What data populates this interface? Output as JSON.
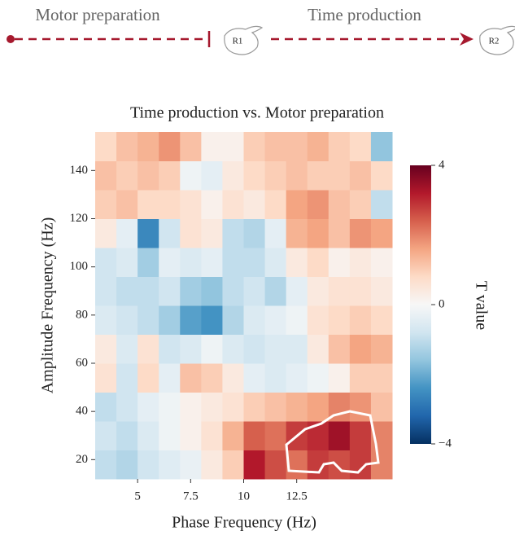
{
  "diagram": {
    "labels": [
      "Motor preparation",
      "Time production"
    ],
    "responses": [
      "R1",
      "R2"
    ]
  },
  "chart_data": {
    "type": "heatmap",
    "title": "Time production vs. Motor preparation",
    "x_label": "Phase Frequency (Hz)",
    "y_label": "Amplitude Frequency (Hz)",
    "colorbar_label": "T value",
    "xbins": [
      3,
      4,
      5,
      6,
      7,
      8,
      9,
      10,
      11,
      12,
      13,
      14,
      15,
      16,
      17
    ],
    "ybins": [
      12,
      24,
      36,
      48,
      60,
      72,
      84,
      96,
      108,
      120,
      132,
      144,
      156
    ],
    "z": [
      [
        -1.0,
        -1.2,
        -0.8,
        -0.5,
        -0.3,
        0.4,
        1.0,
        3.2,
        2.6,
        2.2,
        2.8,
        2.6,
        2.8,
        2.0
      ],
      [
        -0.8,
        -1.0,
        -0.6,
        -0.2,
        0.2,
        0.6,
        1.4,
        2.4,
        2.2,
        2.8,
        3.0,
        3.4,
        2.8,
        2.0
      ],
      [
        -1.0,
        -0.8,
        -0.4,
        -0.2,
        0.2,
        0.4,
        0.6,
        1.0,
        1.2,
        1.4,
        1.6,
        2.0,
        1.8,
        1.2
      ],
      [
        0.6,
        -0.8,
        0.8,
        -0.4,
        1.2,
        1.0,
        0.4,
        -0.4,
        -0.6,
        -0.4,
        -0.2,
        0.2,
        1.0,
        1.0
      ],
      [
        0.4,
        -0.6,
        0.6,
        -0.8,
        -0.6,
        -0.2,
        -0.6,
        -0.8,
        -0.6,
        -0.6,
        0.4,
        1.2,
        1.6,
        1.4
      ],
      [
        -0.6,
        -0.8,
        -1.0,
        -1.4,
        -2.2,
        -2.4,
        -1.2,
        -0.6,
        -0.4,
        -0.2,
        0.6,
        0.8,
        1.0,
        0.8
      ],
      [
        -0.8,
        -1.0,
        -1.0,
        -0.8,
        -1.4,
        -1.6,
        -1.0,
        -0.8,
        -1.2,
        -0.4,
        0.4,
        0.6,
        0.6,
        0.4
      ],
      [
        -0.8,
        -0.6,
        -1.4,
        -0.4,
        -0.6,
        -0.4,
        -1.0,
        -1.0,
        -0.6,
        0.4,
        0.8,
        0.2,
        0.4,
        0.2
      ],
      [
        0.4,
        -0.4,
        -2.6,
        -0.8,
        0.6,
        0.4,
        -1.0,
        -1.2,
        -0.4,
        1.4,
        1.6,
        1.2,
        1.8,
        1.6
      ],
      [
        1.0,
        1.2,
        0.8,
        0.8,
        0.6,
        0.2,
        0.6,
        0.4,
        0.8,
        1.6,
        1.8,
        1.2,
        1.0,
        -1.0
      ],
      [
        1.2,
        1.0,
        1.2,
        1.0,
        -0.2,
        -0.4,
        0.4,
        0.8,
        1.0,
        1.2,
        1.0,
        1.0,
        1.2,
        0.8
      ],
      [
        0.8,
        1.2,
        1.4,
        1.8,
        1.2,
        0.2,
        0.2,
        1.0,
        1.2,
        1.2,
        1.4,
        1.0,
        0.8,
        -1.6
      ]
    ],
    "xlim": [
      3,
      17
    ],
    "ylim": [
      12,
      156
    ],
    "xticks": [
      5,
      7.5,
      10,
      12.5
    ],
    "yticks": [
      20,
      40,
      60,
      80,
      100,
      120,
      140
    ],
    "zlim": [
      -4,
      4
    ],
    "zticks": [
      {
        "value": -4,
        "label": "−4"
      },
      0,
      4
    ],
    "colorscale": [
      "#053061",
      "#2166ac",
      "#4393c3",
      "#92c5de",
      "#d1e5f0",
      "#f7f7f7",
      "#fddbc7",
      "#f4a582",
      "#d6604d",
      "#b2182b",
      "#67001f"
    ]
  }
}
